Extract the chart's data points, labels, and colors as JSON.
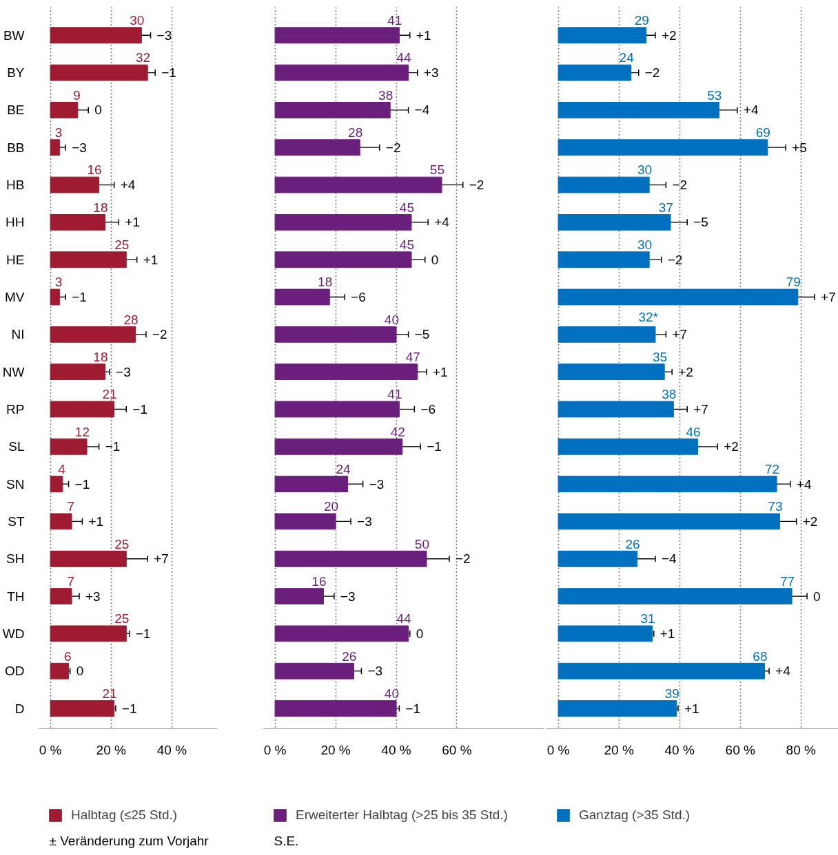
{
  "chart_data": [
    {
      "type": "bar",
      "orientation": "horizontal",
      "categories": [
        "BW",
        "BY",
        "BE",
        "BB",
        "HB",
        "HH",
        "HE",
        "MV",
        "NI",
        "NW",
        "RP",
        "SL",
        "SN",
        "ST",
        "SH",
        "TH",
        "WD",
        "OD",
        "D"
      ],
      "series": [
        {
          "name": "Halbtag (≤25 Std.)",
          "color": "#9e1b32",
          "values": [
            30,
            32,
            9,
            3,
            16,
            18,
            25,
            3,
            28,
            18,
            21,
            12,
            4,
            7,
            25,
            7,
            25,
            6,
            21
          ],
          "errors": [
            [
              30,
              33
            ],
            [
              32,
              34.5
            ],
            [
              9,
              12.5
            ],
            [
              3,
              5
            ],
            [
              16,
              21
            ],
            [
              18,
              22.5
            ],
            [
              25,
              28.5
            ],
            [
              3,
              5
            ],
            [
              28,
              31.5
            ],
            [
              18,
              19.5
            ],
            [
              21,
              25
            ],
            [
              12,
              16
            ],
            [
              4,
              6
            ],
            [
              7,
              10.5
            ],
            [
              25,
              32
            ],
            [
              7,
              9.5
            ],
            [
              25,
              26
            ],
            [
              6,
              6.5
            ],
            [
              21,
              21.5
            ]
          ]
        }
      ],
      "xlim": [
        -4,
        55
      ],
      "xticks": [
        {
          "value": 0,
          "label": "0 %"
        },
        {
          "value": 20,
          "label": "20 %"
        },
        {
          "value": 40,
          "label": "40 %"
        }
      ],
      "grid": "x",
      "legend": "bottom",
      "data_labels": true,
      "annotations": [
        {
          "text": "−3",
          "x": 33,
          "y": "BW"
        },
        {
          "text": "−1",
          "x": 34.5,
          "y": "BY"
        },
        {
          "text": "0",
          "x": 12.5,
          "y": "BE"
        },
        {
          "text": "−3",
          "x": 5,
          "y": "BB"
        },
        {
          "text": "+4",
          "x": 21,
          "y": "HB"
        },
        {
          "text": "+1",
          "x": 22.5,
          "y": "HH"
        },
        {
          "text": "+1",
          "x": 28.5,
          "y": "HE"
        },
        {
          "text": "−1",
          "x": 5,
          "y": "MV"
        },
        {
          "text": "−2",
          "x": 31.5,
          "y": "NI"
        },
        {
          "text": "−3",
          "x": 19.5,
          "y": "NW"
        },
        {
          "text": "−1",
          "x": 25,
          "y": "RP"
        },
        {
          "text": "−1",
          "x": 16,
          "y": "SL"
        },
        {
          "text": "−1",
          "x": 6,
          "y": "SN"
        },
        {
          "text": "+1",
          "x": 10.5,
          "y": "ST"
        },
        {
          "text": "+7",
          "x": 32,
          "y": "SH"
        },
        {
          "text": "+3",
          "x": 9.5,
          "y": "TH"
        },
        {
          "text": "−1",
          "x": 26,
          "y": "WD"
        },
        {
          "text": "0",
          "x": 6.5,
          "y": "OD"
        },
        {
          "text": "−1",
          "x": 21.5,
          "y": "D"
        },
        "± Veränderung zum Vorjahr"
      ]
    },
    {
      "type": "bar",
      "orientation": "horizontal",
      "categories": [
        "BW",
        "BY",
        "BE",
        "BB",
        "HB",
        "HH",
        "HE",
        "MV",
        "NI",
        "NW",
        "RP",
        "SL",
        "SN",
        "ST",
        "SH",
        "TH",
        "WD",
        "OD",
        "D"
      ],
      "series": [
        {
          "name": "Erweiterter Halbtag (>25 bis 35 Std.)",
          "color": "#6b1f7c",
          "values": [
            41,
            44,
            38,
            28,
            55,
            45,
            45,
            18,
            40,
            47,
            41,
            42,
            24,
            20,
            50,
            16,
            44,
            26,
            40
          ],
          "errors": [
            [
              41,
              44.5
            ],
            [
              44,
              47
            ],
            [
              38,
              44
            ],
            [
              28,
              34.5
            ],
            [
              55,
              62
            ],
            [
              45,
              50.5
            ],
            [
              45,
              49.5
            ],
            [
              18,
              23
            ],
            [
              40,
              44
            ],
            [
              47,
              50
            ],
            [
              41,
              46
            ],
            [
              42,
              48
            ],
            [
              24,
              29
            ],
            [
              20,
              25
            ],
            [
              50,
              57.5
            ],
            [
              16,
              19.5
            ],
            [
              44,
              44.5
            ],
            [
              26,
              28.5
            ],
            [
              40,
              41
            ]
          ]
        }
      ],
      "xlim": [
        -4,
        89
      ],
      "xticks": [
        {
          "value": 0,
          "label": "0 %"
        },
        {
          "value": 20,
          "label": "20 %"
        },
        {
          "value": 40,
          "label": "40 %"
        },
        {
          "value": 60,
          "label": "60 %"
        }
      ],
      "grid": "x",
      "legend": "bottom",
      "data_labels": true,
      "tick_labels": "x",
      "annotations": [
        {
          "text": "+1",
          "x": 44.5,
          "y": "BW"
        },
        {
          "text": "+3",
          "x": 47,
          "y": "BY"
        },
        {
          "text": "−4",
          "x": 44,
          "y": "BE"
        },
        {
          "text": "−2",
          "x": 34.5,
          "y": "BB"
        },
        {
          "text": "−2",
          "x": 62,
          "y": "HB"
        },
        {
          "text": "+4",
          "x": 50.5,
          "y": "HH"
        },
        {
          "text": "0",
          "x": 49.5,
          "y": "HE"
        },
        {
          "text": "−6",
          "x": 23,
          "y": "MV"
        },
        {
          "text": "−5",
          "x": 44,
          "y": "NI"
        },
        {
          "text": "+1",
          "x": 50,
          "y": "NW"
        },
        {
          "text": "−6",
          "x": 46,
          "y": "RP"
        },
        {
          "text": "−1",
          "x": 48,
          "y": "SL"
        },
        {
          "text": "−3",
          "x": 29,
          "y": "SN"
        },
        {
          "text": "−3",
          "x": 25,
          "y": "ST"
        },
        {
          "text": "−2",
          "x": 57.5,
          "y": "SH"
        },
        {
          "text": "−3",
          "x": 19.5,
          "y": "TH"
        },
        {
          "text": "0",
          "x": 44.5,
          "y": "WD"
        },
        {
          "text": "−3",
          "x": 28.5,
          "y": "OD"
        },
        {
          "text": "−1",
          "x": 41,
          "y": "D"
        },
        "S.E."
      ]
    },
    {
      "type": "bar",
      "orientation": "horizontal",
      "categories": [
        "BW",
        "BY",
        "BE",
        "BB",
        "HB",
        "HH",
        "HE",
        "MV",
        "NI",
        "NW",
        "RP",
        "SL",
        "SN",
        "ST",
        "SH",
        "TH",
        "WD",
        "OD",
        "D"
      ],
      "series": [
        {
          "name": "Ganztag (>35 Std.)",
          "color": "#0070bf",
          "values": [
            29,
            24,
            53,
            69,
            30,
            37,
            30,
            79,
            32,
            35,
            38,
            46,
            72,
            73,
            26,
            77,
            31,
            68,
            39
          ],
          "value_labels": [
            "29",
            "24",
            "53",
            "69",
            "30",
            "37",
            "30",
            "79",
            "32*",
            "35",
            "38",
            "46",
            "72",
            "73",
            "26",
            "77",
            "31",
            "68",
            "39"
          ],
          "errors": [
            [
              29,
              32
            ],
            [
              24,
              26.5
            ],
            [
              53,
              59
            ],
            [
              69,
              75
            ],
            [
              30,
              35.5
            ],
            [
              37,
              42.5
            ],
            [
              30,
              34
            ],
            [
              79,
              84.5
            ],
            [
              32,
              35.5
            ],
            [
              35,
              37.5
            ],
            [
              38,
              42.5
            ],
            [
              46,
              52.5
            ],
            [
              72,
              76.5
            ],
            [
              73,
              78.5
            ],
            [
              26,
              32
            ],
            [
              77,
              82
            ],
            [
              31,
              31.5
            ],
            [
              68,
              69.5
            ],
            [
              39,
              39.5
            ]
          ]
        }
      ],
      "xlim": [
        -4,
        93
      ],
      "xticks": [
        {
          "value": 0,
          "label": "0 %"
        },
        {
          "value": 20,
          "label": "20 %"
        },
        {
          "value": 40,
          "label": "40 %"
        },
        {
          "value": 60,
          "label": "60 %"
        },
        {
          "value": 80,
          "label": "80 %"
        }
      ],
      "grid": "x",
      "legend": "bottom",
      "tick_labels": "x",
      "annotations": [
        {
          "text": "+2",
          "x": 32,
          "y": "BW"
        },
        {
          "text": "−2",
          "x": 26.5,
          "y": "BY"
        },
        {
          "text": "+4",
          "x": 59,
          "y": "BE"
        },
        {
          "text": "+5",
          "x": 75,
          "y": "BB"
        },
        {
          "text": "−2",
          "x": 35.5,
          "y": "HB"
        },
        {
          "text": "−5",
          "x": 42.5,
          "y": "HH"
        },
        {
          "text": "−2",
          "x": 34,
          "y": "HE"
        },
        {
          "text": "+7",
          "x": 84.5,
          "y": "MV"
        },
        {
          "text": "+7",
          "x": 35.5,
          "y": "NI"
        },
        {
          "text": "+2",
          "x": 37.5,
          "y": "NW"
        },
        {
          "text": "+7",
          "x": 42.5,
          "y": "RP"
        },
        {
          "text": "+2",
          "x": 52.5,
          "y": "SL"
        },
        {
          "text": "+4",
          "x": 76.5,
          "y": "SN"
        },
        {
          "text": "+2",
          "x": 78.5,
          "y": "ST"
        },
        {
          "text": "−4",
          "x": 32,
          "y": "SH"
        },
        {
          "text": "0",
          "x": 82,
          "y": "TH"
        },
        {
          "text": "+1",
          "x": 31.5,
          "y": "WD"
        },
        {
          "text": "+4",
          "x": 69.5,
          "y": "OD"
        },
        {
          "text": "+1",
          "x": 39.5,
          "y": "D"
        }
      ]
    }
  ]
}
